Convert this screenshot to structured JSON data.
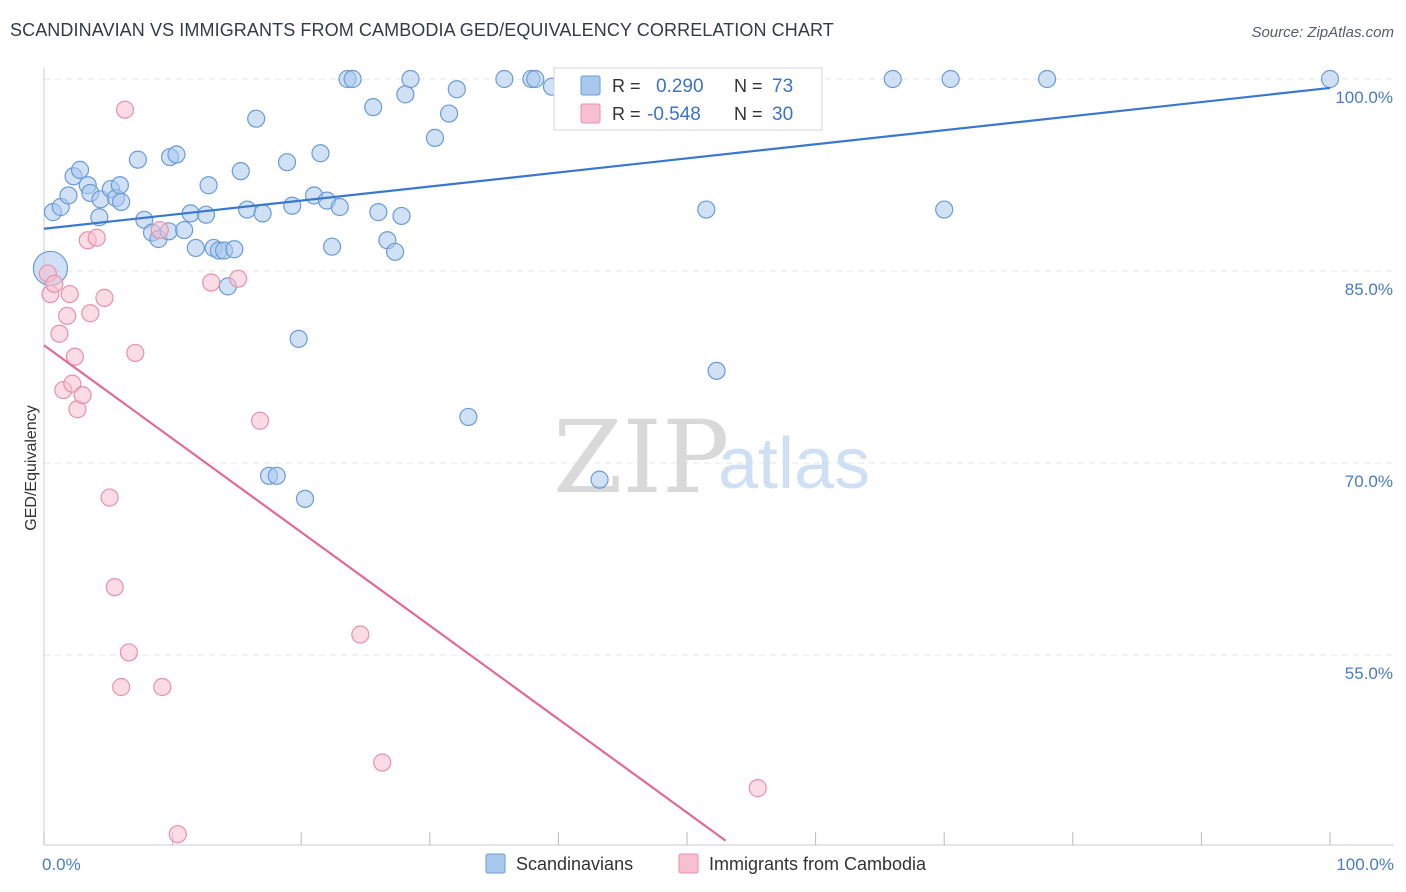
{
  "title": "SCANDINAVIAN VS IMMIGRANTS FROM CAMBODIA GED/EQUIVALENCY CORRELATION CHART",
  "source": "Source: ZipAtlas.com",
  "watermark": {
    "zip": "ZIP",
    "atlas": "atlas"
  },
  "legend_box": {
    "r_label": "R =",
    "n_label": "N =",
    "rows": [
      {
        "r": "0.290",
        "n": "73"
      },
      {
        "r": "-0.548",
        "n": "30"
      }
    ]
  },
  "colors": {
    "blue_fill": "#a9c8ee",
    "blue_stroke": "#6a9bd8",
    "blue_line": "#3a78d0",
    "pink_fill": "#f7bfd0",
    "pink_stroke": "#e890ad",
    "pink_line": "#e06a96",
    "grid": "#e6e6e6",
    "axis_text": "#4a7cc7"
  },
  "chart_data": {
    "type": "scatter",
    "title": "SCANDINAVIAN VS IMMIGRANTS FROM CAMBODIA GED/EQUIVALENCY CORRELATION CHART",
    "xlabel": "",
    "ylabel": "GED/Equivalency",
    "xlim": [
      0,
      100
    ],
    "ylim": [
      40.5,
      101.5
    ],
    "y_ticks": [
      {
        "value": 100,
        "label": "100.0%"
      },
      {
        "value": 85,
        "label": "85.0%"
      },
      {
        "value": 70,
        "label": "70.0%"
      },
      {
        "value": 55,
        "label": "55.0%"
      }
    ],
    "x_ticks": [
      {
        "value": 0,
        "label": "0.0%"
      },
      {
        "value": 100,
        "label": "100.0%"
      }
    ],
    "grid": true,
    "legend_position": "top-center",
    "series": [
      {
        "name": "Scandinavians",
        "r": 0.29,
        "n": 73,
        "trend": [
          [
            0,
            88.3
          ],
          [
            100,
            99.3
          ]
        ],
        "points": [
          [
            0.5,
            85.2
          ],
          [
            0.7,
            89.6
          ],
          [
            1.3,
            90.0
          ],
          [
            1.9,
            90.9
          ],
          [
            2.3,
            92.4
          ],
          [
            2.8,
            92.9
          ],
          [
            3.4,
            91.7
          ],
          [
            3.6,
            91.1
          ],
          [
            4.3,
            89.2
          ],
          [
            4.4,
            90.6
          ],
          [
            5.2,
            91.4
          ],
          [
            5.6,
            90.7
          ],
          [
            5.9,
            91.7
          ],
          [
            6.0,
            90.4
          ],
          [
            7.3,
            93.7
          ],
          [
            7.8,
            89.0
          ],
          [
            8.4,
            88.0
          ],
          [
            8.9,
            87.5
          ],
          [
            9.7,
            88.1
          ],
          [
            9.8,
            93.9
          ],
          [
            10.3,
            94.1
          ],
          [
            10.9,
            88.2
          ],
          [
            11.4,
            89.5
          ],
          [
            11.8,
            86.8
          ],
          [
            12.6,
            89.4
          ],
          [
            12.8,
            91.7
          ],
          [
            13.2,
            86.8
          ],
          [
            13.6,
            86.6
          ],
          [
            14.0,
            86.6
          ],
          [
            14.3,
            83.8
          ],
          [
            14.8,
            86.7
          ],
          [
            15.3,
            92.8
          ],
          [
            15.8,
            89.8
          ],
          [
            16.5,
            96.9
          ],
          [
            17.0,
            89.5
          ],
          [
            17.5,
            69.0
          ],
          [
            18.1,
            69.0
          ],
          [
            18.9,
            93.5
          ],
          [
            19.3,
            90.1
          ],
          [
            19.8,
            79.7
          ],
          [
            20.3,
            67.2
          ],
          [
            21.0,
            90.9
          ],
          [
            21.5,
            94.2
          ],
          [
            22.0,
            90.5
          ],
          [
            22.4,
            86.9
          ],
          [
            23.0,
            90.0
          ],
          [
            23.6,
            100.0
          ],
          [
            24.0,
            100.0
          ],
          [
            25.6,
            97.8
          ],
          [
            26.0,
            89.6
          ],
          [
            26.7,
            87.4
          ],
          [
            27.3,
            86.5
          ],
          [
            27.8,
            89.3
          ],
          [
            28.1,
            98.8
          ],
          [
            28.5,
            100.0
          ],
          [
            30.4,
            95.4
          ],
          [
            31.5,
            97.3
          ],
          [
            32.1,
            99.2
          ],
          [
            33.0,
            73.6
          ],
          [
            35.8,
            100.0
          ],
          [
            37.9,
            100.0
          ],
          [
            38.2,
            100.0
          ],
          [
            39.5,
            99.4
          ],
          [
            43.2,
            68.7
          ],
          [
            47.0,
            100.0
          ],
          [
            51.0,
            100.0
          ],
          [
            51.5,
            89.8
          ],
          [
            52.3,
            77.2
          ],
          [
            66.0,
            100.0
          ],
          [
            70.0,
            89.8
          ],
          [
            70.5,
            100.0
          ],
          [
            78.0,
            100.0
          ],
          [
            100.0,
            100.0
          ]
        ]
      },
      {
        "name": "Immigrants from Cambodia",
        "r": -0.548,
        "n": 30,
        "trend": [
          [
            0,
            79.2
          ],
          [
            53,
            40.5
          ]
        ],
        "points": [
          [
            0.3,
            84.8
          ],
          [
            0.5,
            83.2
          ],
          [
            0.8,
            84.0
          ],
          [
            1.2,
            80.1
          ],
          [
            1.5,
            75.7
          ],
          [
            1.8,
            81.5
          ],
          [
            2.0,
            83.2
          ],
          [
            2.2,
            76.2
          ],
          [
            2.4,
            78.3
          ],
          [
            2.6,
            74.2
          ],
          [
            3.0,
            75.3
          ],
          [
            3.4,
            87.4
          ],
          [
            3.6,
            81.7
          ],
          [
            4.1,
            87.6
          ],
          [
            4.7,
            82.9
          ],
          [
            5.1,
            67.3
          ],
          [
            5.5,
            60.3
          ],
          [
            6.0,
            52.5
          ],
          [
            6.3,
            97.6
          ],
          [
            6.6,
            55.2
          ],
          [
            7.1,
            78.6
          ],
          [
            9.0,
            88.2
          ],
          [
            9.2,
            52.5
          ],
          [
            10.4,
            41.0
          ],
          [
            13.0,
            84.1
          ],
          [
            15.1,
            84.4
          ],
          [
            16.8,
            73.3
          ],
          [
            24.6,
            56.6
          ],
          [
            26.3,
            46.6
          ],
          [
            55.5,
            44.6
          ]
        ]
      }
    ]
  }
}
